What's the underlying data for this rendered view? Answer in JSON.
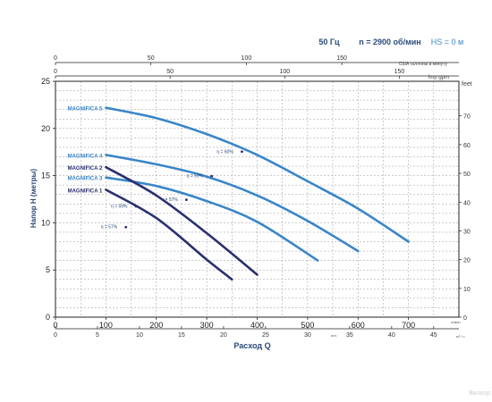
{
  "header": {
    "frequency": "50 Гц",
    "speed": "n = 2900 об/мин",
    "hs": "HS = 0 м"
  },
  "watermark": "Вилхор",
  "chart_data": {
    "type": "line",
    "xlabel": "Расход Q",
    "ylabel": "Напор Н (метры)",
    "xlim": [
      0,
      800
    ],
    "ylim": [
      0,
      25
    ],
    "x_ticks": [
      0,
      100,
      200,
      300,
      400,
      500,
      600,
      700
    ],
    "y_ticks": [
      0,
      5,
      10,
      15,
      20,
      25
    ],
    "grid": true,
    "bottom_axis": {
      "unit": "л/мин",
      "ticks": [
        0,
        100,
        200,
        300,
        400,
        500,
        600,
        700
      ]
    },
    "bottom2_axis": {
      "unit": "м³/ч",
      "unit_small": "м³ / ч",
      "ticks": [
        0,
        5,
        10,
        15,
        20,
        25,
        30,
        35,
        40,
        45
      ]
    },
    "top1_axis": {
      "unit": "США галлоны в минуту",
      "ticks": [
        0,
        50,
        100,
        150
      ]
    },
    "top2_axis": {
      "unit": "Imp gpm",
      "ticks": [
        0,
        50,
        100,
        150
      ]
    },
    "right_axis": {
      "unit": "feet",
      "ticks": [
        0,
        10,
        20,
        30,
        40,
        50,
        60,
        70
      ]
    },
    "series": [
      {
        "name": "MAGNIFICA 5",
        "color": "#3a86c8",
        "x": [
          100,
          200,
          300,
          400,
          500,
          600,
          700
        ],
        "y": [
          22.2,
          21.1,
          19.4,
          17.2,
          14.4,
          11.5,
          8.0
        ]
      },
      {
        "name": "MAGNIFICA 4",
        "color": "#3a86c8",
        "x": [
          100,
          200,
          300,
          400,
          500,
          600
        ],
        "y": [
          17.2,
          16.2,
          14.9,
          12.9,
          10.2,
          7.0
        ]
      },
      {
        "name": "MAGNIFICA 3",
        "color": "#3a86c8",
        "x": [
          100,
          200,
          300,
          400,
          520
        ],
        "y": [
          14.8,
          13.9,
          12.3,
          10.1,
          6.0
        ]
      },
      {
        "name": "MAGNIFICA 2",
        "color": "#2a2f6e",
        "x": [
          100,
          200,
          300,
          400
        ],
        "y": [
          15.9,
          12.9,
          8.9,
          4.5
        ]
      },
      {
        "name": "MAGNIFICA 1",
        "color": "#2a2f6e",
        "x": [
          100,
          200,
          300,
          350
        ],
        "y": [
          13.5,
          10.5,
          6.1,
          4.0
        ]
      }
    ],
    "annotations": [
      {
        "text": "η = 60%",
        "x": 320,
        "y": 17.4
      },
      {
        "text": "η = 59%",
        "x": 260,
        "y": 14.8
      },
      {
        "text": "η = 57%",
        "x": 210,
        "y": 12.3
      },
      {
        "text": "η = 59%",
        "x": 110,
        "y": 11.6
      },
      {
        "text": "η = 57%",
        "x": 90,
        "y": 9.4
      }
    ]
  }
}
